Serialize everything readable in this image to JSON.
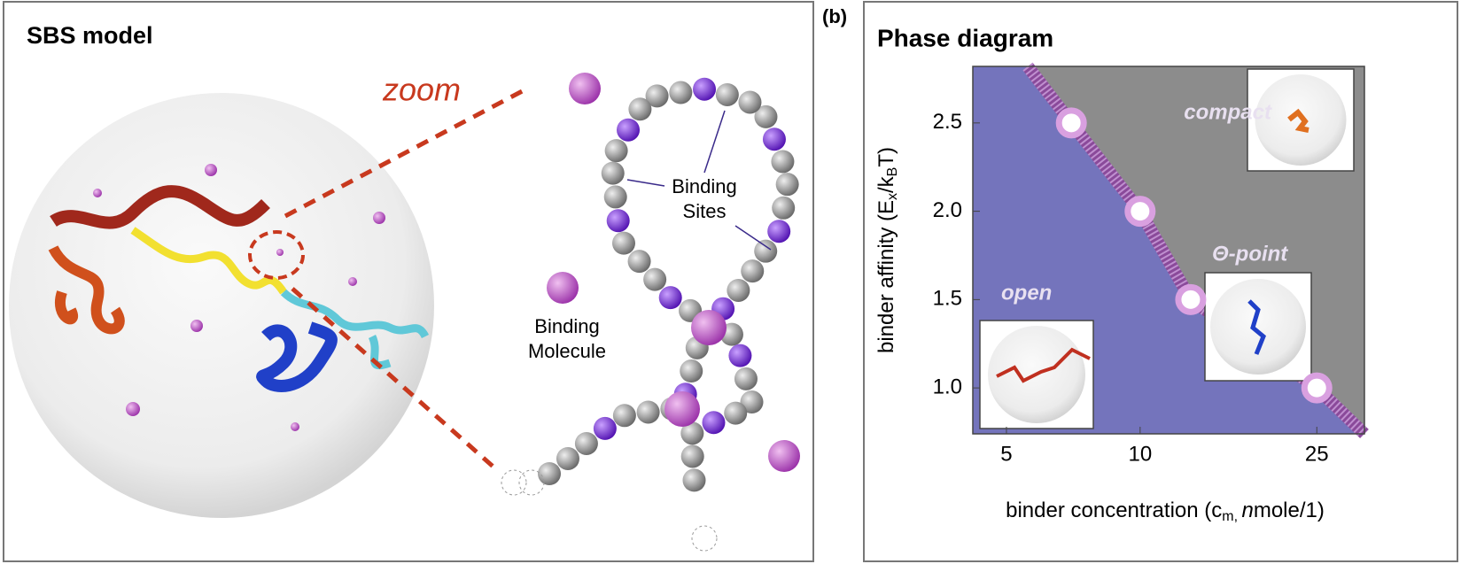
{
  "panel_a": {
    "title": "SBS model",
    "zoom_label": "zoom",
    "binding_sites_label": [
      "Binding",
      "Sites"
    ],
    "binding_molecule_label": [
      "Binding",
      "Molecule"
    ]
  },
  "chart_data": {
    "type": "scatter",
    "panel_label": "(b)",
    "title": "Phase diagram",
    "x_label": [
      "binder concentration (c",
      "m, ",
      "n",
      "mole/1)"
    ],
    "y_label": [
      "binder affinity (E",
      "x",
      "/k",
      "B",
      "T)"
    ],
    "x": [
      7,
      10,
      13,
      25
    ],
    "y": [
      2.5,
      2.0,
      1.5,
      1.0
    ],
    "color": "#d9a0e0",
    "xscale": "log",
    "xlim": [
      4.2,
      32
    ],
    "xticks": [
      5,
      10,
      25
    ],
    "ylim": [
      0.74,
      2.82
    ],
    "yticks": [
      {
        "value": 1,
        "label": "1.0"
      },
      1.5,
      {
        "value": 2,
        "label": "2.0"
      },
      2.5
    ],
    "annotations": [
      "compact",
      "Θ-point",
      "open"
    ]
  }
}
